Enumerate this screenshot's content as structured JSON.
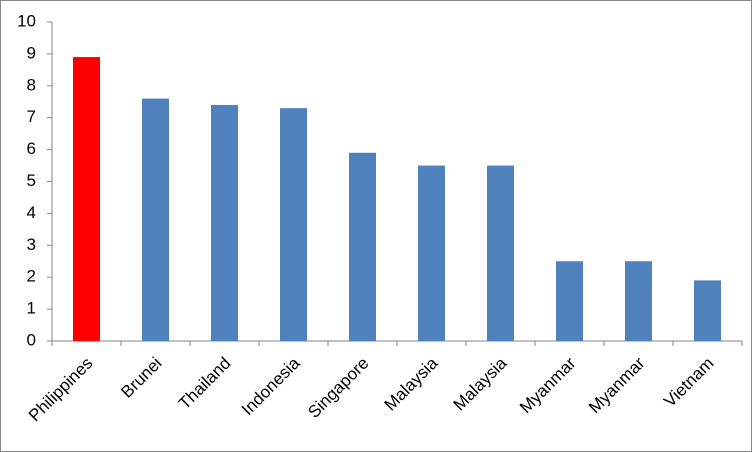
{
  "chart_data": {
    "type": "bar",
    "categories": [
      "Philippines",
      "Brunei",
      "Thailand",
      "Indonesia",
      "Singapore",
      "Malaysia",
      "Malaysia",
      "Myanmar",
      "Myanmar",
      "Vietnam"
    ],
    "values": [
      8.9,
      7.6,
      7.4,
      7.3,
      5.9,
      5.5,
      5.5,
      2.5,
      2.5,
      1.9
    ],
    "colors": [
      "#ff0000",
      "#4f81bd",
      "#4f81bd",
      "#4f81bd",
      "#4f81bd",
      "#4f81bd",
      "#4f81bd",
      "#4f81bd",
      "#4f81bd",
      "#4f81bd"
    ],
    "ylim": [
      0,
      10
    ],
    "yticks": [
      0,
      1,
      2,
      3,
      4,
      5,
      6,
      7,
      8,
      9,
      10
    ],
    "grid": false
  }
}
